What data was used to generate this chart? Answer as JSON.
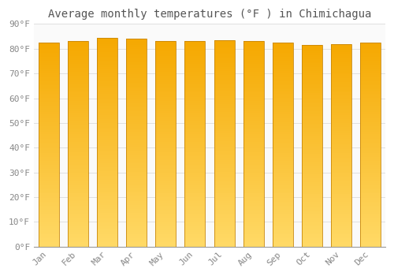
{
  "title": "Average monthly temperatures (°F ) in Chimichagua",
  "months": [
    "Jan",
    "Feb",
    "Mar",
    "Apr",
    "May",
    "Jun",
    "Jul",
    "Aug",
    "Sep",
    "Oct",
    "Nov",
    "Dec"
  ],
  "values": [
    82.5,
    83.0,
    84.5,
    84.0,
    83.0,
    83.0,
    83.5,
    83.0,
    82.5,
    81.5,
    82.0,
    82.5
  ],
  "bar_color_top": "#F5A800",
  "bar_color_bottom": "#FFD966",
  "bar_edge_color": "#C8870A",
  "background_color": "#FFFFFF",
  "plot_bg_color": "#FAFAFA",
  "ylim": [
    0,
    90
  ],
  "yticks": [
    0,
    10,
    20,
    30,
    40,
    50,
    60,
    70,
    80,
    90
  ],
  "ytick_labels": [
    "0°F",
    "10°F",
    "20°F",
    "30°F",
    "40°F",
    "50°F",
    "60°F",
    "70°F",
    "80°F",
    "90°F"
  ],
  "grid_color": "#E0E0E0",
  "title_fontsize": 10,
  "tick_fontsize": 8,
  "font_family": "monospace",
  "tick_color": "#888888",
  "bar_width": 0.7,
  "n_gradient_steps": 100
}
